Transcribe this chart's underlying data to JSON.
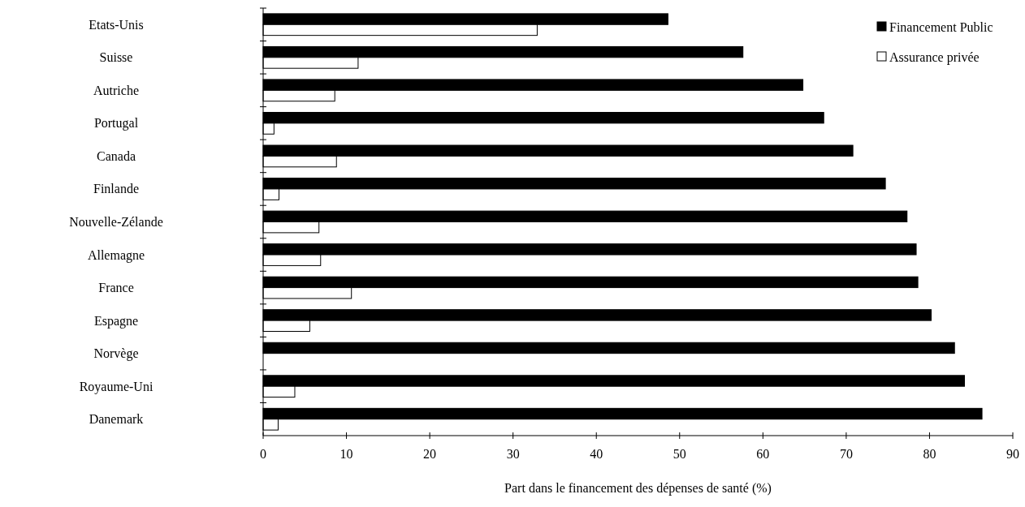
{
  "chart_data": {
    "type": "bar",
    "orientation": "horizontal",
    "xlabel": "Part dans le financement des dépenses de santé (%)",
    "categories": [
      "Etats-Unis",
      "Suisse",
      "Autriche",
      "Portugal",
      "Canada",
      "Finlande",
      "Nouvelle-Zélande",
      "Allemagne",
      "France",
      "Espagne",
      "Norvège",
      "Royaume-Uni",
      "Danemark"
    ],
    "series": [
      {
        "name": "Financement Public",
        "color": "#000000",
        "values": [
          48.6,
          57.6,
          64.8,
          67.3,
          70.8,
          74.7,
          77.3,
          78.4,
          78.6,
          80.2,
          83.0,
          84.2,
          86.3
        ]
      },
      {
        "name": "Assurance privée",
        "color": "#ffffff",
        "values": [
          32.9,
          11.4,
          8.6,
          1.3,
          8.8,
          1.9,
          6.7,
          6.9,
          10.6,
          5.6,
          null,
          3.8,
          1.8
        ]
      }
    ],
    "xlim": [
      0,
      90
    ],
    "xticks": [
      0,
      10,
      20,
      30,
      40,
      50,
      60,
      70,
      80,
      90
    ],
    "grid": false,
    "legend": "top right"
  }
}
